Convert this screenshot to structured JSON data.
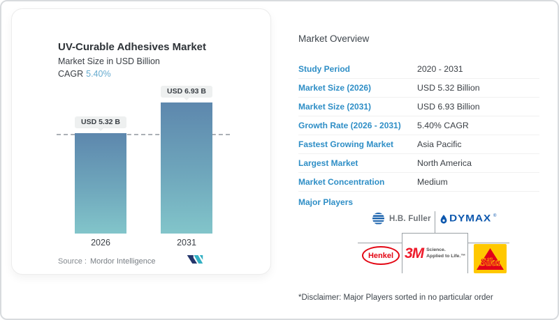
{
  "colors": {
    "accent_blue": "#2e8ec6",
    "cagr_blue": "#66abcf",
    "bar_gradient_top": "#5d87ad",
    "bar_gradient_bottom": "#82c5ca",
    "pill_background": "#eef0f0",
    "dymax_blue": "#0e58ae",
    "hbfuller_blue": "#1b63ad",
    "henkel_red": "#e30613",
    "threem_red": "#ee1b2b",
    "sika_yellow": "#ffc800",
    "sika_red": "#e2001a",
    "mordor_navy": "#24356b",
    "mordor_teal": "#33b0c3"
  },
  "chart_data": {
    "type": "bar",
    "title": "UV-Curable Adhesives Market",
    "subtitle": "Market Size in USD Billion",
    "cagr_label": "CAGR",
    "cagr_value": "5.40%",
    "categories": [
      "2026",
      "2031"
    ],
    "values": [
      5.32,
      6.93
    ],
    "bar_labels": [
      "USD 5.32 B",
      "USD 6.93 B"
    ],
    "unit": "USD Billion",
    "ylim": [
      0,
      6.93
    ],
    "reference_line": "dashed horizontal line at 5.32 (2026 value)",
    "legend": "none",
    "source_label": "Source :",
    "source_value": "Mordor Intelligence"
  },
  "overview": {
    "heading": "Market Overview",
    "rows": [
      {
        "label": "Study Period",
        "value": "2020 - 2031"
      },
      {
        "label": "Market Size (2026)",
        "value": "USD 5.32 Billion"
      },
      {
        "label": "Market Size (2031)",
        "value": "USD 6.93 Billion"
      },
      {
        "label": "Growth Rate (2026 - 2031)",
        "value": "5.40% CAGR"
      },
      {
        "label": "Fastest Growing Market",
        "value": "Asia Pacific"
      },
      {
        "label": "Largest Market",
        "value": "North America"
      },
      {
        "label": "Market Concentration",
        "value": "Medium"
      }
    ],
    "major_players_label": "Major Players",
    "players": {
      "hbfuller": "H.B. Fuller",
      "dymax": "DYMAX",
      "dymax_reg": "®",
      "henkel": "Henkel",
      "threem": "3M",
      "threem_tag_line1": "Science.",
      "threem_tag_line2": "Applied to Life.™",
      "sika": "Sika"
    },
    "disclaimer": "*Disclaimer: Major Players sorted in no particular order"
  }
}
